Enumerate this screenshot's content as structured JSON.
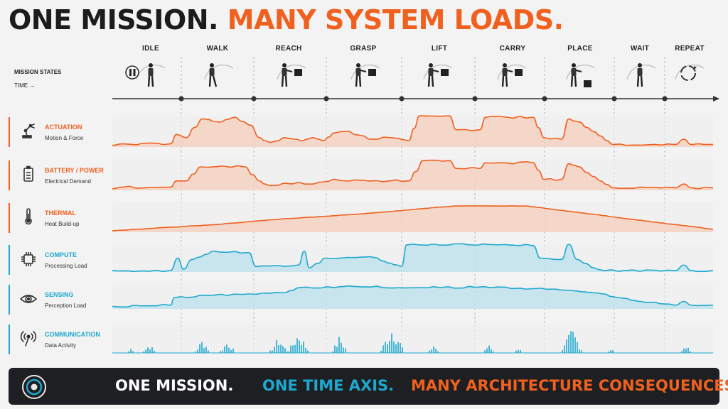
{
  "header": {
    "title_part1": "ONE MISSION.",
    "title_part2": "MANY SYSTEM LOADS."
  },
  "timeline": {
    "states_label": "MISSION STATES",
    "time_label": "TIME →"
  },
  "states": [
    {
      "label": "IDLE",
      "icon": "robot-idle-pause-icon"
    },
    {
      "label": "WALK",
      "icon": "robot-walk-icon"
    },
    {
      "label": "REACH",
      "icon": "robot-reach-icon"
    },
    {
      "label": "GRASP",
      "icon": "robot-grasp-icon"
    },
    {
      "label": "LIFT",
      "icon": "robot-lift-icon"
    },
    {
      "label": "CARRY",
      "icon": "robot-carry-icon"
    },
    {
      "label": "PLACE",
      "icon": "robot-place-icon"
    },
    {
      "label": "WAIT",
      "icon": "robot-wait-icon"
    },
    {
      "label": "REPEAT",
      "icon": "repeat-cycle-icon"
    }
  ],
  "rows": [
    {
      "title": "ACTUATION",
      "subtitle": "Motion & Force",
      "icon": "robot-arm-icon",
      "color": "#f0601e"
    },
    {
      "title": "BATTERY / POWER",
      "subtitle": "Electrical Demand",
      "icon": "battery-icon",
      "color": "#f0601e"
    },
    {
      "title": "THERMAL",
      "subtitle": "Heat Build-up",
      "icon": "thermometer-icon",
      "color": "#f0601e"
    },
    {
      "title": "COMPUTE",
      "subtitle": "Processing Load",
      "icon": "chip-icon",
      "color": "#1ea8cf"
    },
    {
      "title": "SENSING",
      "subtitle": "Perception Load",
      "icon": "eye-icon",
      "color": "#1ea8cf"
    },
    {
      "title": "COMMUNICATION",
      "subtitle": "Data Activity",
      "icon": "antenna-icon",
      "color": "#1ea8cf"
    }
  ],
  "footer": {
    "part1": "ONE MISSION.",
    "part2": "ONE TIME AXIS.",
    "part3": "MANY ARCHITECTURE CONSEQUENCES.",
    "icon": "target-rings-icon"
  },
  "colors": {
    "orange": "#f0601e",
    "blue": "#1ea8cf",
    "dark": "#1d1f22"
  }
}
